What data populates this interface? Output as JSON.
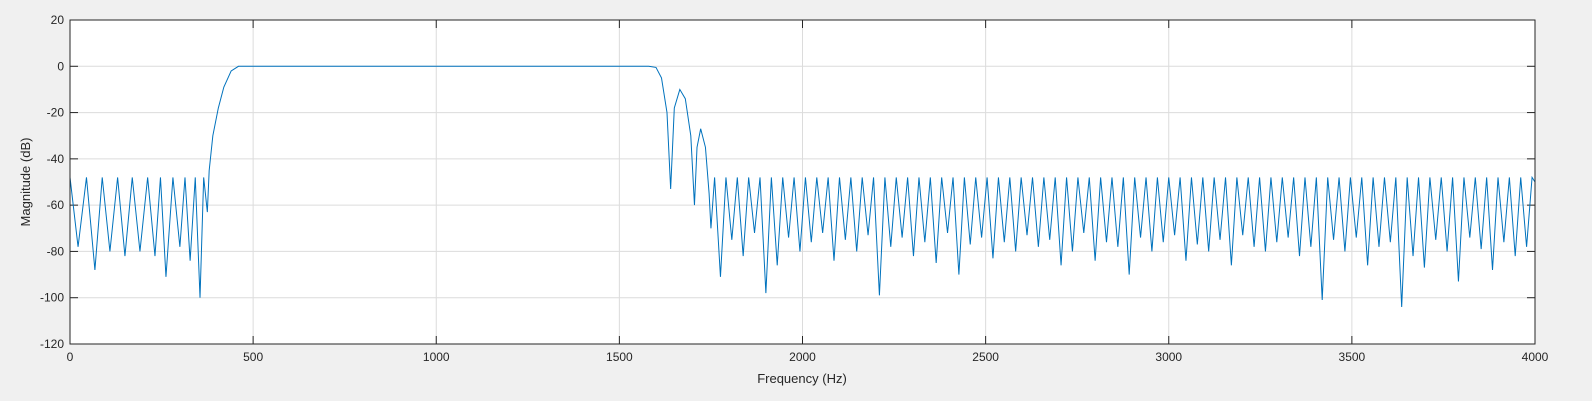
{
  "chart_data": {
    "type": "line",
    "xlabel": "Frequency (Hz)",
    "ylabel": "Magnitude (dB)",
    "xlim": [
      0,
      4000
    ],
    "ylim": [
      -120,
      20
    ],
    "xticks": [
      0,
      500,
      1000,
      1500,
      2000,
      2500,
      3000,
      3500,
      4000
    ],
    "yticks": [
      -120,
      -100,
      -80,
      -60,
      -40,
      -20,
      0,
      20
    ],
    "grid": true,
    "series": [
      {
        "color": "#0072bd",
        "x": [
          0,
          22,
          45,
          68,
          88,
          109,
          130,
          150,
          170,
          191,
          212,
          232,
          247,
          262,
          281,
          300,
          314,
          328,
          342,
          355,
          365,
          375,
          380,
          390,
          405,
          420,
          440,
          460,
          500,
          600,
          700,
          800,
          900,
          1000,
          1100,
          1200,
          1300,
          1400,
          1500,
          1580,
          1600,
          1615,
          1630,
          1640,
          1650,
          1665,
          1680,
          1695,
          1705,
          1712,
          1722,
          1735,
          1745,
          1750,
          1760,
          1776,
          1791,
          1807,
          1822,
          1838,
          1853,
          1869,
          1884,
          1900,
          1915,
          1931,
          1946,
          1962,
          1977,
          1993,
          2008,
          2024,
          2039,
          2055,
          2070,
          2086,
          2101,
          2117,
          2132,
          2148,
          2163,
          2179,
          2194,
          2210,
          2225,
          2241,
          2256,
          2272,
          2287,
          2303,
          2318,
          2334,
          2349,
          2365,
          2380,
          2396,
          2411,
          2427,
          2442,
          2458,
          2473,
          2489,
          2504,
          2520,
          2535,
          2551,
          2566,
          2582,
          2597,
          2613,
          2628,
          2644,
          2659,
          2675,
          2690,
          2706,
          2721,
          2737,
          2752,
          2768,
          2783,
          2799,
          2814,
          2830,
          2845,
          2861,
          2876,
          2892,
          2907,
          2923,
          2938,
          2954,
          2969,
          2985,
          3000,
          3016,
          3031,
          3047,
          3062,
          3078,
          3093,
          3109,
          3124,
          3140,
          3155,
          3171,
          3186,
          3202,
          3217,
          3233,
          3248,
          3264,
          3279,
          3295,
          3310,
          3326,
          3341,
          3357,
          3372,
          3388,
          3403,
          3419,
          3434,
          3450,
          3465,
          3481,
          3496,
          3512,
          3527,
          3543,
          3558,
          3574,
          3589,
          3605,
          3620,
          3636,
          3651,
          3667,
          3682,
          3698,
          3713,
          3729,
          3744,
          3760,
          3775,
          3791,
          3806,
          3822,
          3837,
          3853,
          3868,
          3884,
          3899,
          3915,
          3930,
          3946,
          3961,
          3977,
          3992,
          4000
        ],
        "values": [
          -48,
          -78,
          -48,
          -88,
          -48,
          -80,
          -48,
          -82,
          -48,
          -80,
          -48,
          -82,
          -48,
          -91,
          -48,
          -78,
          -48,
          -84,
          -48,
          -100,
          -48,
          -63,
          -45,
          -30,
          -18,
          -9,
          -2,
          0,
          0,
          0,
          0,
          0,
          0,
          0,
          0,
          0,
          0,
          0,
          0,
          0,
          -0.5,
          -5,
          -20,
          -53,
          -18,
          -10,
          -14,
          -30,
          -60,
          -35,
          -27,
          -35,
          -55,
          -70,
          -48,
          -91,
          -48,
          -75,
          -48,
          -82,
          -48,
          -72,
          -48,
          -98,
          -48,
          -86,
          -48,
          -74,
          -48,
          -80,
          -48,
          -76,
          -48,
          -72,
          -48,
          -84,
          -48,
          -75,
          -48,
          -80,
          -48,
          -73,
          -48,
          -99,
          -48,
          -78,
          -48,
          -74,
          -48,
          -82,
          -48,
          -76,
          -48,
          -85,
          -48,
          -72,
          -48,
          -90,
          -48,
          -77,
          -48,
          -74,
          -48,
          -83,
          -48,
          -76,
          -48,
          -80,
          -48,
          -73,
          -48,
          -78,
          -48,
          -75,
          -48,
          -86,
          -48,
          -80,
          -48,
          -72,
          -48,
          -84,
          -48,
          -76,
          -48,
          -78,
          -48,
          -90,
          -48,
          -74,
          -48,
          -80,
          -48,
          -76,
          -48,
          -73,
          -48,
          -84,
          -48,
          -77,
          -48,
          -80,
          -48,
          -75,
          -48,
          -86,
          -48,
          -73,
          -48,
          -78,
          -48,
          -80,
          -48,
          -76,
          -48,
          -74,
          -48,
          -82,
          -48,
          -78,
          -48,
          -101,
          -48,
          -75,
          -48,
          -80,
          -48,
          -74,
          -48,
          -86,
          -48,
          -78,
          -48,
          -76,
          -48,
          -104,
          -48,
          -82,
          -48,
          -87,
          -48,
          -75,
          -48,
          -80,
          -48,
          -93,
          -48,
          -74,
          -48,
          -79,
          -48,
          -88,
          -48,
          -76,
          -48,
          -82,
          -48,
          -78,
          -48,
          -50
        ]
      }
    ]
  }
}
